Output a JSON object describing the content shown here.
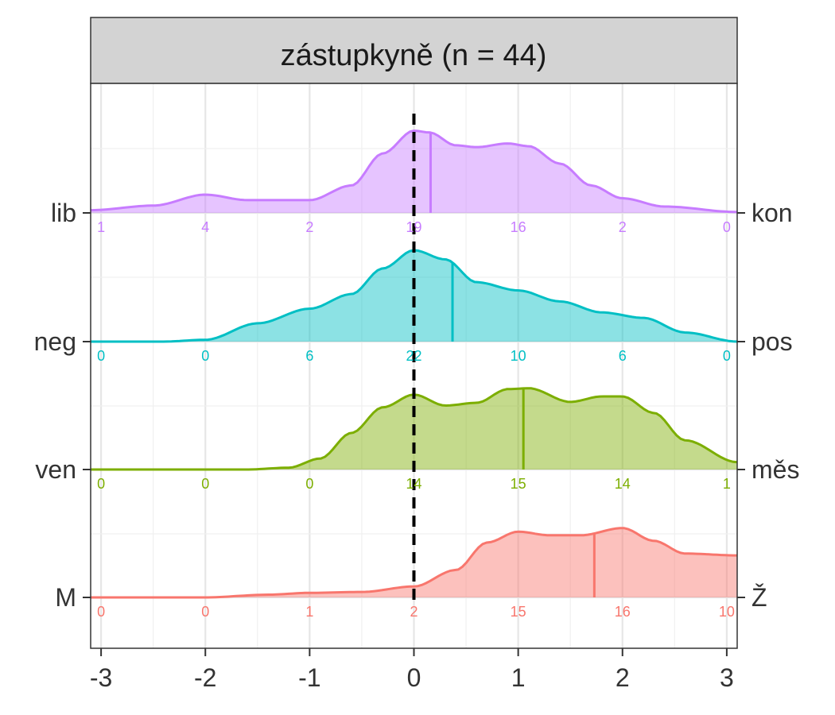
{
  "chart_data": {
    "type": "ridgeline",
    "title": "zástupkyně (n = 44)",
    "xlim": [
      -3.1,
      3.1
    ],
    "x_ticks": [
      -3,
      -2,
      -1,
      0,
      1,
      2,
      3
    ],
    "x_tick_labels": [
      "-3",
      "-2",
      "-1",
      "0",
      "1",
      "2",
      "3"
    ],
    "reference_line_x": 0,
    "grid": true,
    "count_positions": [
      -3,
      -2,
      -1,
      0,
      1,
      2,
      3
    ],
    "series": [
      {
        "left_label": "lib",
        "right_label": "kon",
        "color": "#C77CFF",
        "mean": 0.16,
        "counts": [
          "1",
          "4",
          "2",
          "19",
          "16",
          "2",
          "0"
        ],
        "density": [
          [
            -3.1,
            0.03
          ],
          [
            -2.5,
            0.08
          ],
          [
            -2.0,
            0.2
          ],
          [
            -1.6,
            0.14
          ],
          [
            -1.0,
            0.14
          ],
          [
            -0.6,
            0.3
          ],
          [
            -0.3,
            0.65
          ],
          [
            0,
            0.9
          ],
          [
            0.15,
            0.88
          ],
          [
            0.4,
            0.74
          ],
          [
            0.6,
            0.72
          ],
          [
            0.9,
            0.76
          ],
          [
            1.1,
            0.73
          ],
          [
            1.4,
            0.54
          ],
          [
            1.7,
            0.3
          ],
          [
            2.0,
            0.16
          ],
          [
            2.4,
            0.07
          ],
          [
            3.1,
            0.01
          ]
        ]
      },
      {
        "left_label": "neg",
        "right_label": "pos",
        "color": "#00BFC4",
        "mean": 0.37,
        "counts": [
          "0",
          "0",
          "6",
          "22",
          "10",
          "6",
          "0"
        ],
        "density": [
          [
            -3.1,
            0.0
          ],
          [
            -2.4,
            0.0
          ],
          [
            -2.0,
            0.02
          ],
          [
            -1.5,
            0.2
          ],
          [
            -1.0,
            0.36
          ],
          [
            -0.6,
            0.52
          ],
          [
            -0.3,
            0.8
          ],
          [
            0,
            1.0
          ],
          [
            0.3,
            0.9
          ],
          [
            0.6,
            0.65
          ],
          [
            1.0,
            0.56
          ],
          [
            1.4,
            0.44
          ],
          [
            1.8,
            0.32
          ],
          [
            2.2,
            0.26
          ],
          [
            2.6,
            0.1
          ],
          [
            3.1,
            0.0
          ]
        ]
      },
      {
        "left_label": "ven",
        "right_label": "měs",
        "color": "#7CAE00",
        "mean": 1.05,
        "counts": [
          "0",
          "0",
          "0",
          "14",
          "15",
          "14",
          "1"
        ],
        "density": [
          [
            -3.1,
            0.0
          ],
          [
            -1.6,
            0.0
          ],
          [
            -1.2,
            0.02
          ],
          [
            -0.9,
            0.12
          ],
          [
            -0.6,
            0.4
          ],
          [
            -0.3,
            0.68
          ],
          [
            0,
            0.82
          ],
          [
            0.3,
            0.7
          ],
          [
            0.6,
            0.73
          ],
          [
            0.9,
            0.88
          ],
          [
            1.1,
            0.89
          ],
          [
            1.5,
            0.74
          ],
          [
            1.8,
            0.8
          ],
          [
            2.0,
            0.8
          ],
          [
            2.3,
            0.62
          ],
          [
            2.6,
            0.32
          ],
          [
            3.1,
            0.08
          ]
        ]
      },
      {
        "left_label": "M",
        "right_label": "Ž",
        "color": "#F8766D",
        "mean": 1.73,
        "counts": [
          "0",
          "0",
          "1",
          "2",
          "15",
          "16",
          "10"
        ],
        "density": [
          [
            -3.1,
            0.0
          ],
          [
            -2.0,
            0.0
          ],
          [
            -1.4,
            0.03
          ],
          [
            -1.0,
            0.05
          ],
          [
            -0.5,
            0.06
          ],
          [
            0,
            0.12
          ],
          [
            0.4,
            0.3
          ],
          [
            0.7,
            0.6
          ],
          [
            1.0,
            0.72
          ],
          [
            1.3,
            0.68
          ],
          [
            1.6,
            0.68
          ],
          [
            2.0,
            0.76
          ],
          [
            2.3,
            0.62
          ],
          [
            2.6,
            0.48
          ],
          [
            3.1,
            0.46
          ]
        ]
      }
    ]
  }
}
